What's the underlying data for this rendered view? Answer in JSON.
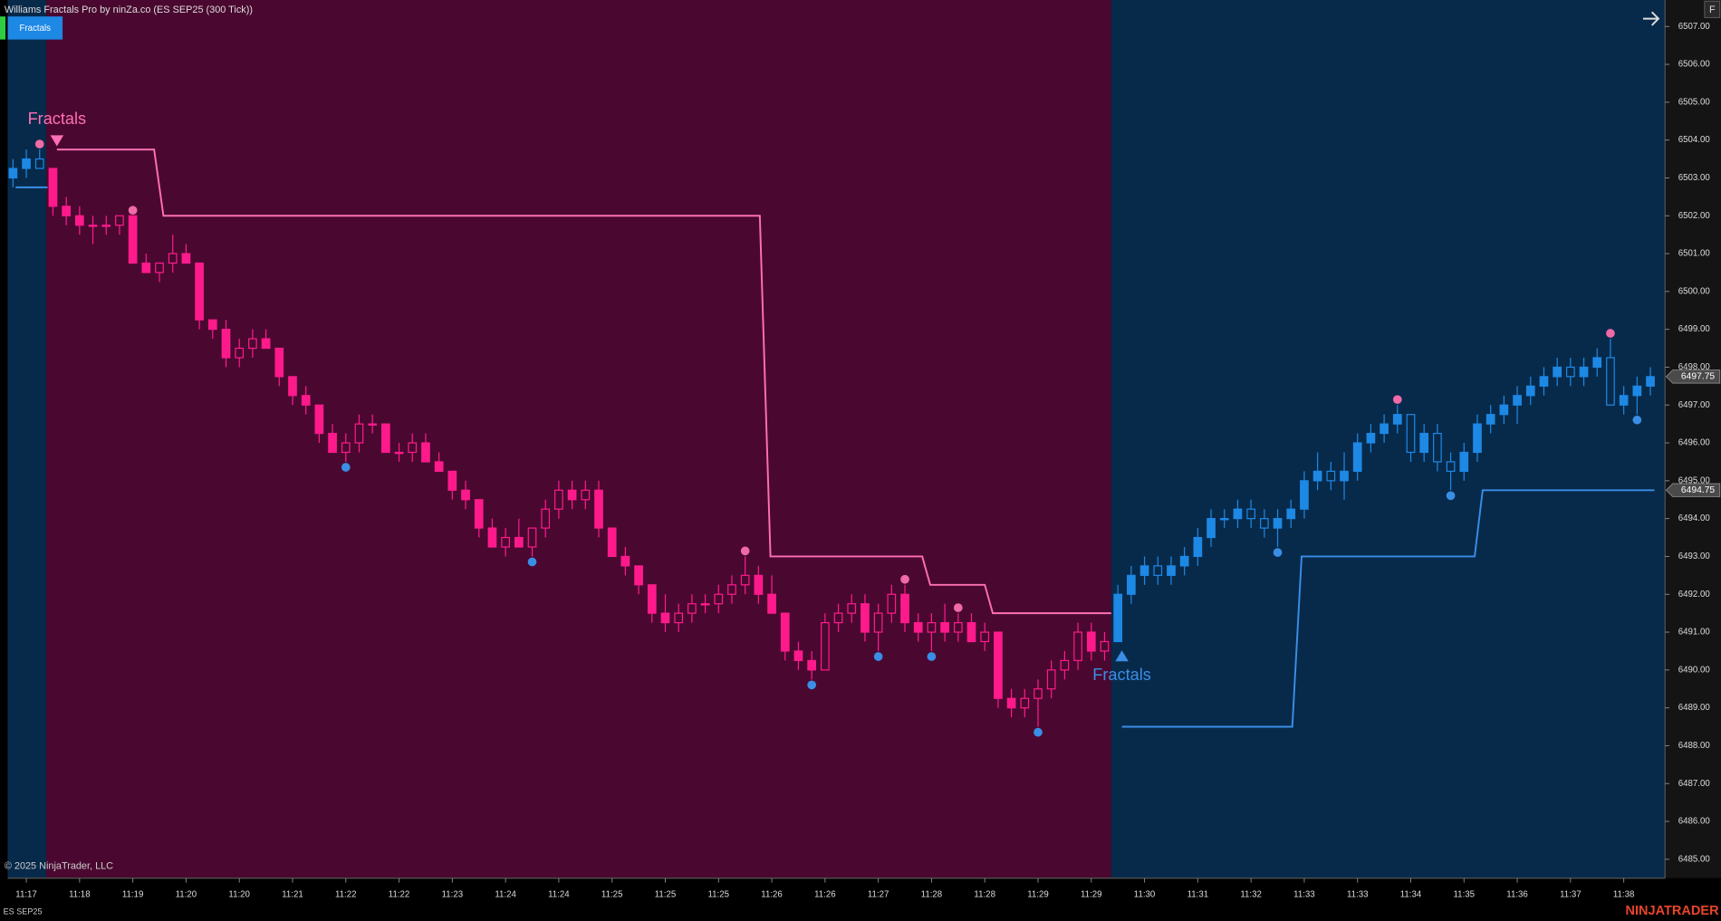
{
  "chart_data": {
    "type": "candlestick",
    "title": "Williams Fractals Pro by ninZa.co (ES SEP25 (300 Tick))",
    "indicator_button": "Fractals",
    "menu_button": "F",
    "copyright": "© 2025 NinjaTrader, LLC",
    "instrument": "ES SEP25",
    "brand": "NINJATRADER",
    "xlim": [
      -0.4,
      124.1
    ],
    "ylim": [
      6484.5,
      6507.7
    ],
    "xticks": [
      {
        "value": 1,
        "label": "11:17"
      },
      {
        "value": 5,
        "label": "11:18"
      },
      {
        "value": 9,
        "label": "11:19"
      },
      {
        "value": 13,
        "label": "11:20"
      },
      {
        "value": 17,
        "label": "11:20"
      },
      {
        "value": 21,
        "label": "11:21"
      },
      {
        "value": 25,
        "label": "11:22"
      },
      {
        "value": 29,
        "label": "11:22"
      },
      {
        "value": 33,
        "label": "11:23"
      },
      {
        "value": 37,
        "label": "11:24"
      },
      {
        "value": 41,
        "label": "11:24"
      },
      {
        "value": 45,
        "label": "11:25"
      },
      {
        "value": 49,
        "label": "11:25"
      },
      {
        "value": 53,
        "label": "11:25"
      },
      {
        "value": 57,
        "label": "11:26"
      },
      {
        "value": 61,
        "label": "11:26"
      },
      {
        "value": 65,
        "label": "11:27"
      },
      {
        "value": 69,
        "label": "11:28"
      },
      {
        "value": 73,
        "label": "11:28"
      },
      {
        "value": 77,
        "label": "11:29"
      },
      {
        "value": 81,
        "label": "11:29"
      },
      {
        "value": 85,
        "label": "11:30"
      },
      {
        "value": 89,
        "label": "11:31"
      },
      {
        "value": 93,
        "label": "11:32"
      },
      {
        "value": 97,
        "label": "11:33"
      },
      {
        "value": 101,
        "label": "11:33"
      },
      {
        "value": 105,
        "label": "11:34"
      },
      {
        "value": 109,
        "label": "11:35"
      },
      {
        "value": 113,
        "label": "11:36"
      },
      {
        "value": 117,
        "label": "11:37"
      },
      {
        "value": 121,
        "label": "11:38"
      }
    ],
    "yticks": [
      {
        "value": 6485,
        "label": "6485.00"
      },
      {
        "value": 6486,
        "label": "6486.00"
      },
      {
        "value": 6487,
        "label": "6487.00"
      },
      {
        "value": 6488,
        "label": "6488.00"
      },
      {
        "value": 6489,
        "label": "6489.00"
      },
      {
        "value": 6490,
        "label": "6490.00"
      },
      {
        "value": 6491,
        "label": "6491.00"
      },
      {
        "value": 6492,
        "label": "6492.00"
      },
      {
        "value": 6493,
        "label": "6493.00"
      },
      {
        "value": 6494,
        "label": "6494.00"
      },
      {
        "value": 6495,
        "label": "6495.00"
      },
      {
        "value": 6496,
        "label": "6496.00"
      },
      {
        "value": 6497,
        "label": "6497.00"
      },
      {
        "value": 6498,
        "label": "6498.00"
      },
      {
        "value": 6499,
        "label": "6499.00"
      },
      {
        "value": 6500,
        "label": "6500.00"
      },
      {
        "value": 6501,
        "label": "6501.00"
      },
      {
        "value": 6502,
        "label": "6502.00"
      },
      {
        "value": 6503,
        "label": "6503.00"
      },
      {
        "value": 6504,
        "label": "6504.00"
      },
      {
        "value": 6505,
        "label": "6505.00"
      },
      {
        "value": 6506,
        "label": "6506.00"
      },
      {
        "value": 6507,
        "label": "6507.00"
      }
    ],
    "regions": [
      {
        "from": -0.4,
        "to": 2.5,
        "color": "#072a4b",
        "candle_color": "#1e88e5",
        "trend": "up"
      },
      {
        "from": 2.5,
        "to": 82.5,
        "color": "#4a0830",
        "candle_color": "#ff1a8c",
        "trend": "down"
      },
      {
        "from": 82.5,
        "to": 124.1,
        "color": "#072a4b",
        "candle_color": "#1e88e5",
        "trend": "up"
      }
    ],
    "candles": [
      [
        6503,
        6503.5,
        6502.75,
        6503.25
      ],
      [
        6503.25,
        6503.75,
        6503,
        6503.5
      ],
      [
        6503.5,
        6503.75,
        6503.25,
        6503.25
      ],
      [
        6503.25,
        6503.25,
        6502,
        6502.25
      ],
      [
        6502.25,
        6502.5,
        6501.75,
        6502
      ],
      [
        6502,
        6502.25,
        6501.5,
        6501.75
      ],
      [
        6501.75,
        6502,
        6501.25,
        6501.75
      ],
      [
        6501.75,
        6502,
        6501.5,
        6501.75
      ],
      [
        6501.75,
        6502,
        6501.5,
        6502
      ],
      [
        6502,
        6502,
        6500.75,
        6500.75
      ],
      [
        6500.75,
        6501,
        6500.5,
        6500.5
      ],
      [
        6500.5,
        6500.75,
        6500.25,
        6500.75
      ],
      [
        6500.75,
        6501.5,
        6500.5,
        6501
      ],
      [
        6501,
        6501.25,
        6500.75,
        6500.75
      ],
      [
        6500.75,
        6500.75,
        6499,
        6499.25
      ],
      [
        6499.25,
        6499.25,
        6498.75,
        6499
      ],
      [
        6499,
        6499.25,
        6498,
        6498.25
      ],
      [
        6498.25,
        6498.75,
        6498,
        6498.5
      ],
      [
        6498.5,
        6499,
        6498.25,
        6498.75
      ],
      [
        6498.75,
        6499,
        6498.5,
        6498.5
      ],
      [
        6498.5,
        6498.5,
        6497.5,
        6497.75
      ],
      [
        6497.75,
        6497.75,
        6497,
        6497.25
      ],
      [
        6497.25,
        6497.5,
        6496.75,
        6497
      ],
      [
        6497,
        6497,
        6496,
        6496.25
      ],
      [
        6496.25,
        6496.5,
        6495.75,
        6495.75
      ],
      [
        6495.75,
        6496.25,
        6495.5,
        6496
      ],
      [
        6496,
        6496.75,
        6495.75,
        6496.5
      ],
      [
        6496.5,
        6496.75,
        6496.25,
        6496.5
      ],
      [
        6496.5,
        6496.5,
        6495.75,
        6495.75
      ],
      [
        6495.75,
        6496,
        6495.5,
        6495.75
      ],
      [
        6495.75,
        6496.25,
        6495.5,
        6496
      ],
      [
        6496,
        6496.25,
        6495.5,
        6495.5
      ],
      [
        6495.5,
        6495.75,
        6495.25,
        6495.25
      ],
      [
        6495.25,
        6495.25,
        6494.5,
        6494.75
      ],
      [
        6494.75,
        6495,
        6494.25,
        6494.5
      ],
      [
        6494.5,
        6494.5,
        6493.5,
        6493.75
      ],
      [
        6493.75,
        6494,
        6493.25,
        6493.25
      ],
      [
        6493.25,
        6493.75,
        6493,
        6493.5
      ],
      [
        6493.5,
        6494,
        6493.25,
        6493.25
      ],
      [
        6493.25,
        6493.75,
        6493,
        6493.75
      ],
      [
        6493.75,
        6494.5,
        6493.5,
        6494.25
      ],
      [
        6494.25,
        6495,
        6494,
        6494.75
      ],
      [
        6494.75,
        6495,
        6494.25,
        6494.5
      ],
      [
        6494.5,
        6495,
        6494.25,
        6494.75
      ],
      [
        6494.75,
        6495,
        6493.5,
        6493.75
      ],
      [
        6493.75,
        6493.75,
        6493,
        6493
      ],
      [
        6493,
        6493.25,
        6492.5,
        6492.75
      ],
      [
        6492.75,
        6492.75,
        6492,
        6492.25
      ],
      [
        6492.25,
        6492.25,
        6491.25,
        6491.5
      ],
      [
        6491.5,
        6492,
        6491,
        6491.25
      ],
      [
        6491.25,
        6491.75,
        6491,
        6491.5
      ],
      [
        6491.5,
        6492,
        6491.25,
        6491.75
      ],
      [
        6491.75,
        6492,
        6491.5,
        6491.75
      ],
      [
        6491.75,
        6492.25,
        6491.5,
        6492
      ],
      [
        6492,
        6492.5,
        6491.75,
        6492.25
      ],
      [
        6492.25,
        6493,
        6492,
        6492.5
      ],
      [
        6492.5,
        6492.75,
        6491.75,
        6492
      ],
      [
        6492,
        6492.5,
        6491.5,
        6491.5
      ],
      [
        6491.5,
        6491.5,
        6490.25,
        6490.5
      ],
      [
        6490.5,
        6490.75,
        6490,
        6490.25
      ],
      [
        6490.25,
        6490.5,
        6489.75,
        6490
      ],
      [
        6490,
        6491.5,
        6490,
        6491.25
      ],
      [
        6491.25,
        6491.75,
        6491,
        6491.5
      ],
      [
        6491.5,
        6492,
        6491.25,
        6491.75
      ],
      [
        6491.75,
        6492,
        6490.75,
        6491
      ],
      [
        6491,
        6491.75,
        6490.5,
        6491.5
      ],
      [
        6491.5,
        6492.25,
        6491.25,
        6492
      ],
      [
        6492,
        6492.25,
        6491,
        6491.25
      ],
      [
        6491.25,
        6491.5,
        6490.75,
        6491
      ],
      [
        6491,
        6491.5,
        6490.5,
        6491.25
      ],
      [
        6491.25,
        6491.75,
        6490.75,
        6491
      ],
      [
        6491,
        6491.5,
        6490.75,
        6491.25
      ],
      [
        6491.25,
        6491.5,
        6490.75,
        6490.75
      ],
      [
        6490.75,
        6491.25,
        6490.5,
        6491
      ],
      [
        6491,
        6491,
        6489,
        6489.25
      ],
      [
        6489.25,
        6489.5,
        6488.75,
        6489
      ],
      [
        6489,
        6489.5,
        6488.75,
        6489.25
      ],
      [
        6489.25,
        6489.75,
        6488.5,
        6489.5
      ],
      [
        6489.5,
        6490.25,
        6489.25,
        6490
      ],
      [
        6490,
        6490.5,
        6489.75,
        6490.25
      ],
      [
        6490.25,
        6491.25,
        6490,
        6491
      ],
      [
        6491,
        6491.25,
        6490.25,
        6490.5
      ],
      [
        6490.5,
        6491,
        6490.25,
        6490.75
      ],
      [
        6490.75,
        6492.25,
        6490.75,
        6492
      ],
      [
        6492,
        6492.75,
        6491.75,
        6492.5
      ],
      [
        6492.5,
        6493,
        6492.25,
        6492.75
      ],
      [
        6492.75,
        6493,
        6492.25,
        6492.5
      ],
      [
        6492.5,
        6493,
        6492.25,
        6492.75
      ],
      [
        6492.75,
        6493.25,
        6492.5,
        6493
      ],
      [
        6493,
        6493.75,
        6492.75,
        6493.5
      ],
      [
        6493.5,
        6494.25,
        6493.25,
        6494
      ],
      [
        6494,
        6494.25,
        6493.75,
        6494
      ],
      [
        6494,
        6494.5,
        6493.75,
        6494.25
      ],
      [
        6494.25,
        6494.5,
        6493.75,
        6494
      ],
      [
        6494,
        6494.25,
        6493.5,
        6493.75
      ],
      [
        6493.75,
        6494.25,
        6493.25,
        6494
      ],
      [
        6494,
        6494.5,
        6493.75,
        6494.25
      ],
      [
        6494.25,
        6495.25,
        6494,
        6495
      ],
      [
        6495,
        6495.75,
        6494.75,
        6495.25
      ],
      [
        6495.25,
        6495.5,
        6494.75,
        6495
      ],
      [
        6495,
        6495.75,
        6494.5,
        6495.25
      ],
      [
        6495.25,
        6496.25,
        6495,
        6496
      ],
      [
        6496,
        6496.5,
        6495.75,
        6496.25
      ],
      [
        6496.25,
        6496.75,
        6496,
        6496.5
      ],
      [
        6496.5,
        6497,
        6496.25,
        6496.75
      ],
      [
        6496.75,
        6496.75,
        6495.5,
        6495.75
      ],
      [
        6495.75,
        6496.5,
        6495.5,
        6496.25
      ],
      [
        6496.25,
        6496.5,
        6495.25,
        6495.5
      ],
      [
        6495.5,
        6495.75,
        6494.75,
        6495.25
      ],
      [
        6495.25,
        6496,
        6495,
        6495.75
      ],
      [
        6495.75,
        6496.75,
        6495.5,
        6496.5
      ],
      [
        6496.5,
        6497,
        6496.25,
        6496.75
      ],
      [
        6496.75,
        6497.25,
        6496.5,
        6497
      ],
      [
        6497,
        6497.5,
        6496.5,
        6497.25
      ],
      [
        6497.25,
        6497.75,
        6497,
        6497.5
      ],
      [
        6497.5,
        6498,
        6497.25,
        6497.75
      ],
      [
        6497.75,
        6498.25,
        6497.5,
        6498
      ],
      [
        6498,
        6498.25,
        6497.5,
        6497.75
      ],
      [
        6497.75,
        6498.25,
        6497.5,
        6498
      ],
      [
        6498,
        6498.5,
        6497.75,
        6498.25
      ],
      [
        6498.25,
        6498.75,
        6497,
        6497
      ],
      [
        6497,
        6497.5,
        6496.75,
        6497.25
      ],
      [
        6497.25,
        6497.75,
        6496.75,
        6497.5
      ],
      [
        6497.5,
        6498,
        6497.25,
        6497.75
      ]
    ],
    "up_fractals": {
      "color": "#f06aa8",
      "bars": [
        2,
        9,
        55,
        67,
        71,
        104,
        120
      ]
    },
    "down_fractals": {
      "color": "#3a8ee6",
      "bars": [
        25,
        39,
        60,
        65,
        69,
        77,
        95,
        108,
        122
      ]
    },
    "lines": [
      {
        "color": "#ff6fb5",
        "x": [
          3.3,
          10.6,
          11.3,
          56.1,
          56.9,
          68.3,
          68.9,
          73,
          73.6,
          82.5
        ],
        "values": [
          6503.75,
          6503.75,
          6502,
          6502,
          6493,
          6493,
          6492.25,
          6492.25,
          6491.5,
          6491.5
        ]
      },
      {
        "color": "#3a8ee6",
        "x": [
          83.3,
          96.1,
          96.8,
          109.8,
          110.4,
          123.3
        ],
        "values": [
          6488.5,
          6488.5,
          6493,
          6493,
          6494.75,
          6494.75
        ]
      },
      {
        "color": "#3a8ee6",
        "x": [
          0.2,
          2.6
        ],
        "values": [
          6502.75,
          6502.75
        ]
      }
    ],
    "annotations": [
      {
        "text": "Fractals",
        "color": "#ff6fb5",
        "line": 0,
        "side": "above"
      },
      {
        "text": "Fractals",
        "color": "#3a8ee6",
        "line": 1,
        "side": "below"
      }
    ],
    "price_markers": [
      6497.75,
      6494.75
    ]
  }
}
